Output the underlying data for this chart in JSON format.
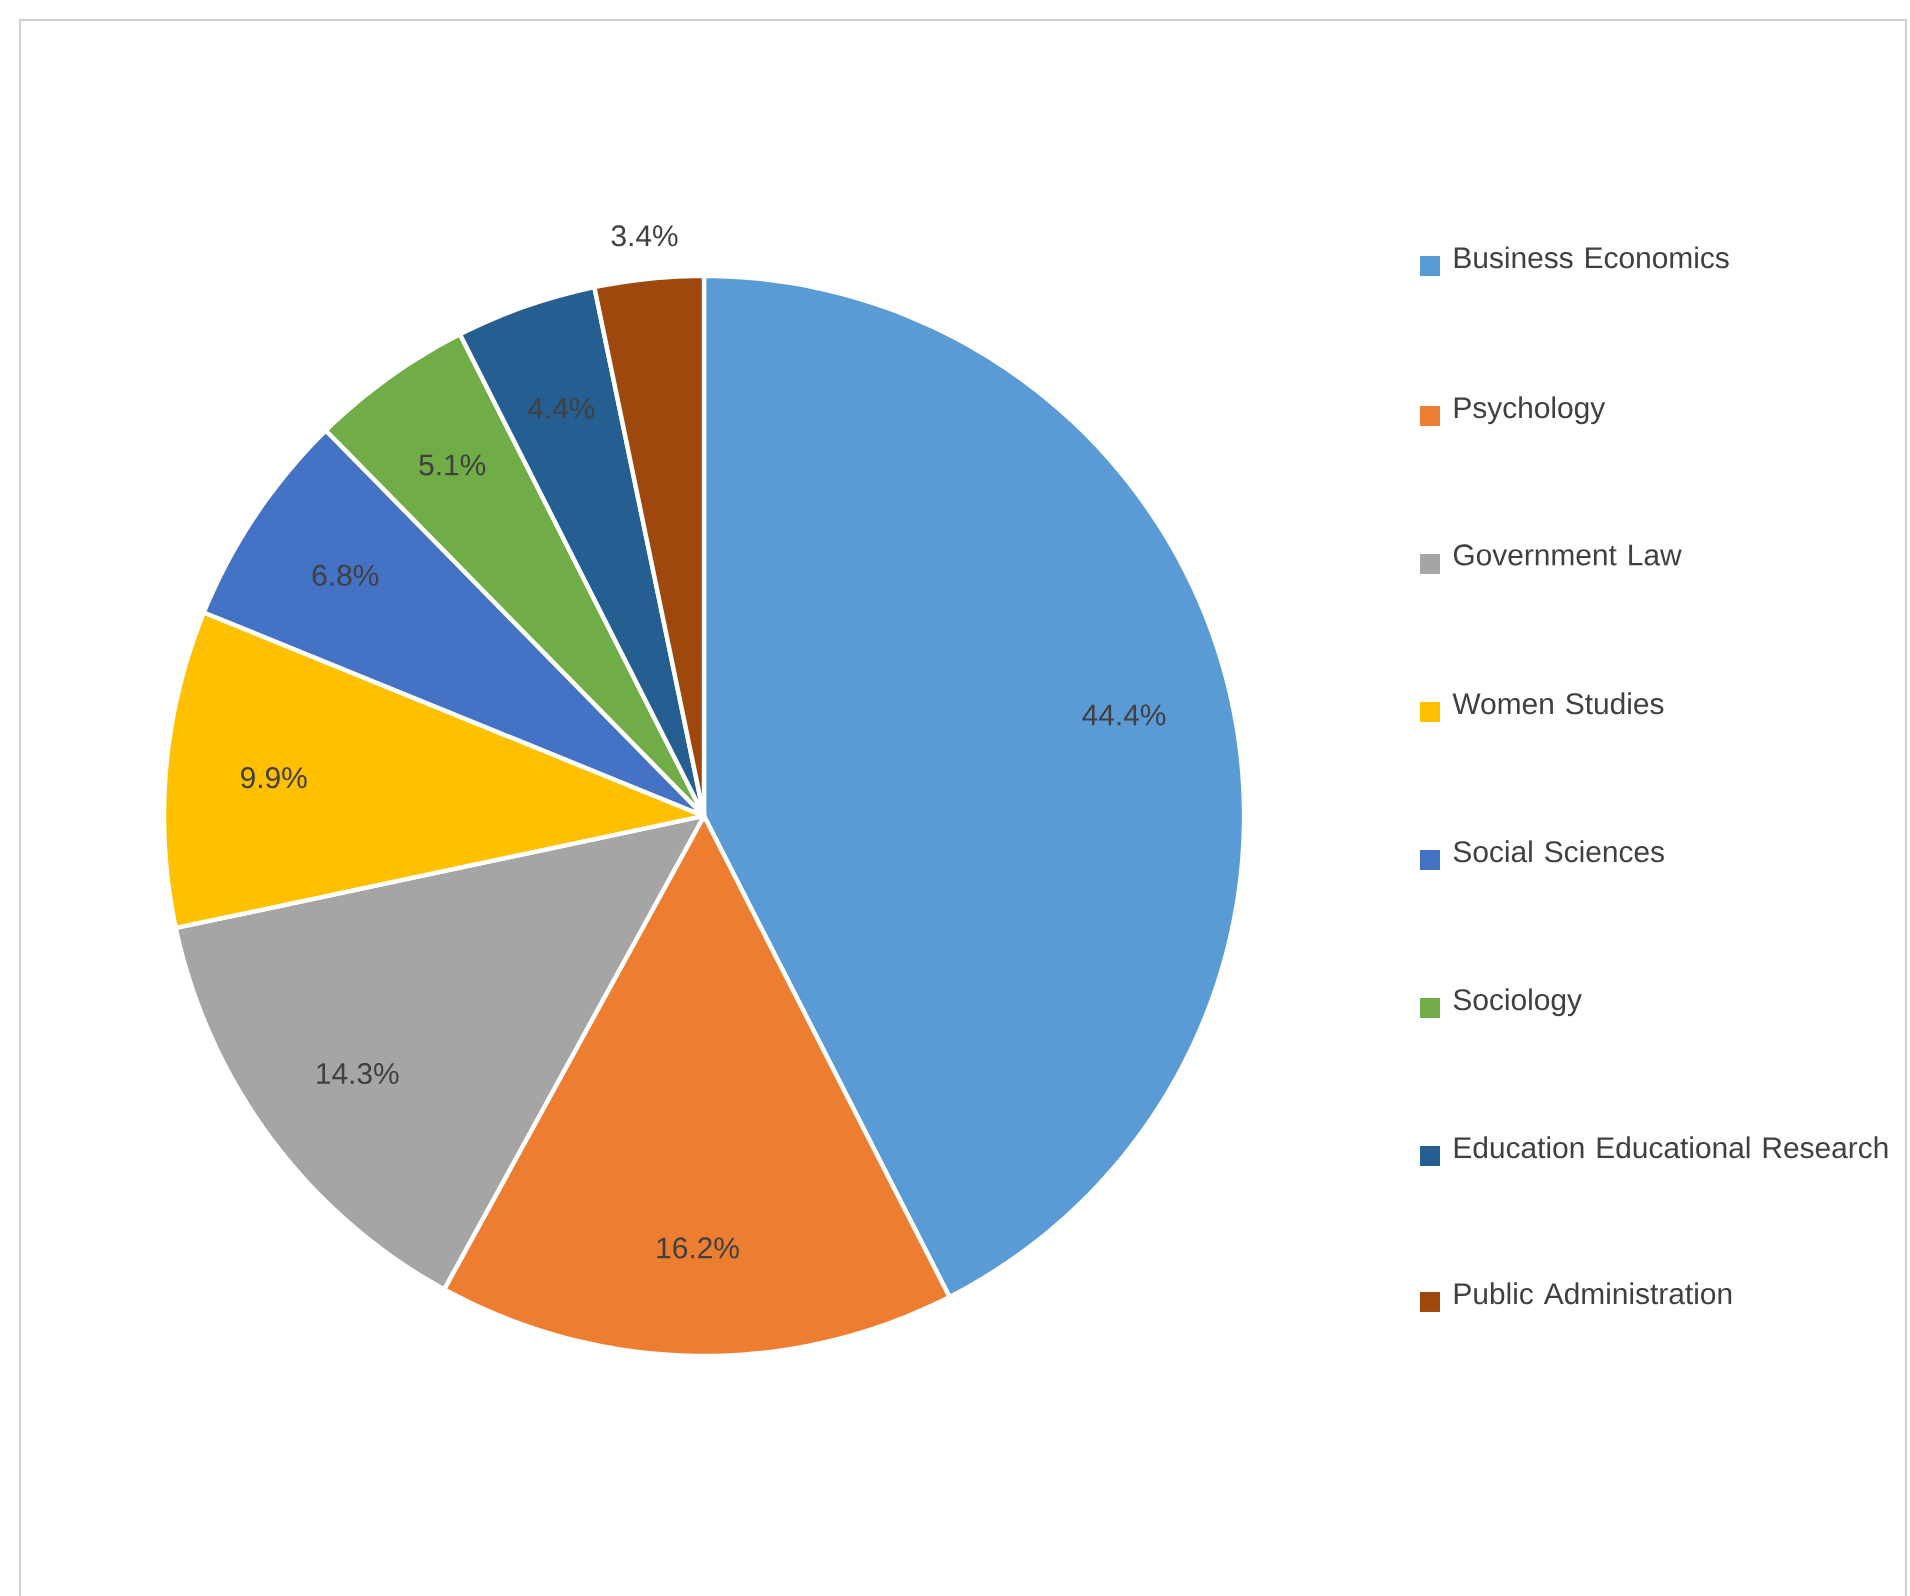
{
  "chart_data": {
    "type": "pie",
    "categories": [
      "Business Economics",
      "Psychology",
      "Government Law",
      "Women Studies",
      "Social Sciences",
      "Sociology",
      "Education Educational Research",
      "Public Administration"
    ],
    "values": [
      44.4,
      16.2,
      14.3,
      9.9,
      6.8,
      5.1,
      4.4,
      3.4
    ],
    "value_labels": [
      "44.4%",
      "16.2%",
      "14.3%",
      "9.9%",
      "6.8%",
      "5.1%",
      "4.4%",
      "3.4%"
    ],
    "colors": [
      "#5b9bd5",
      "#ed7d31",
      "#a5a5a5",
      "#ffc000",
      "#4472c4",
      "#70ad47",
      "#255e91",
      "#9e480e"
    ],
    "legend": "right"
  }
}
